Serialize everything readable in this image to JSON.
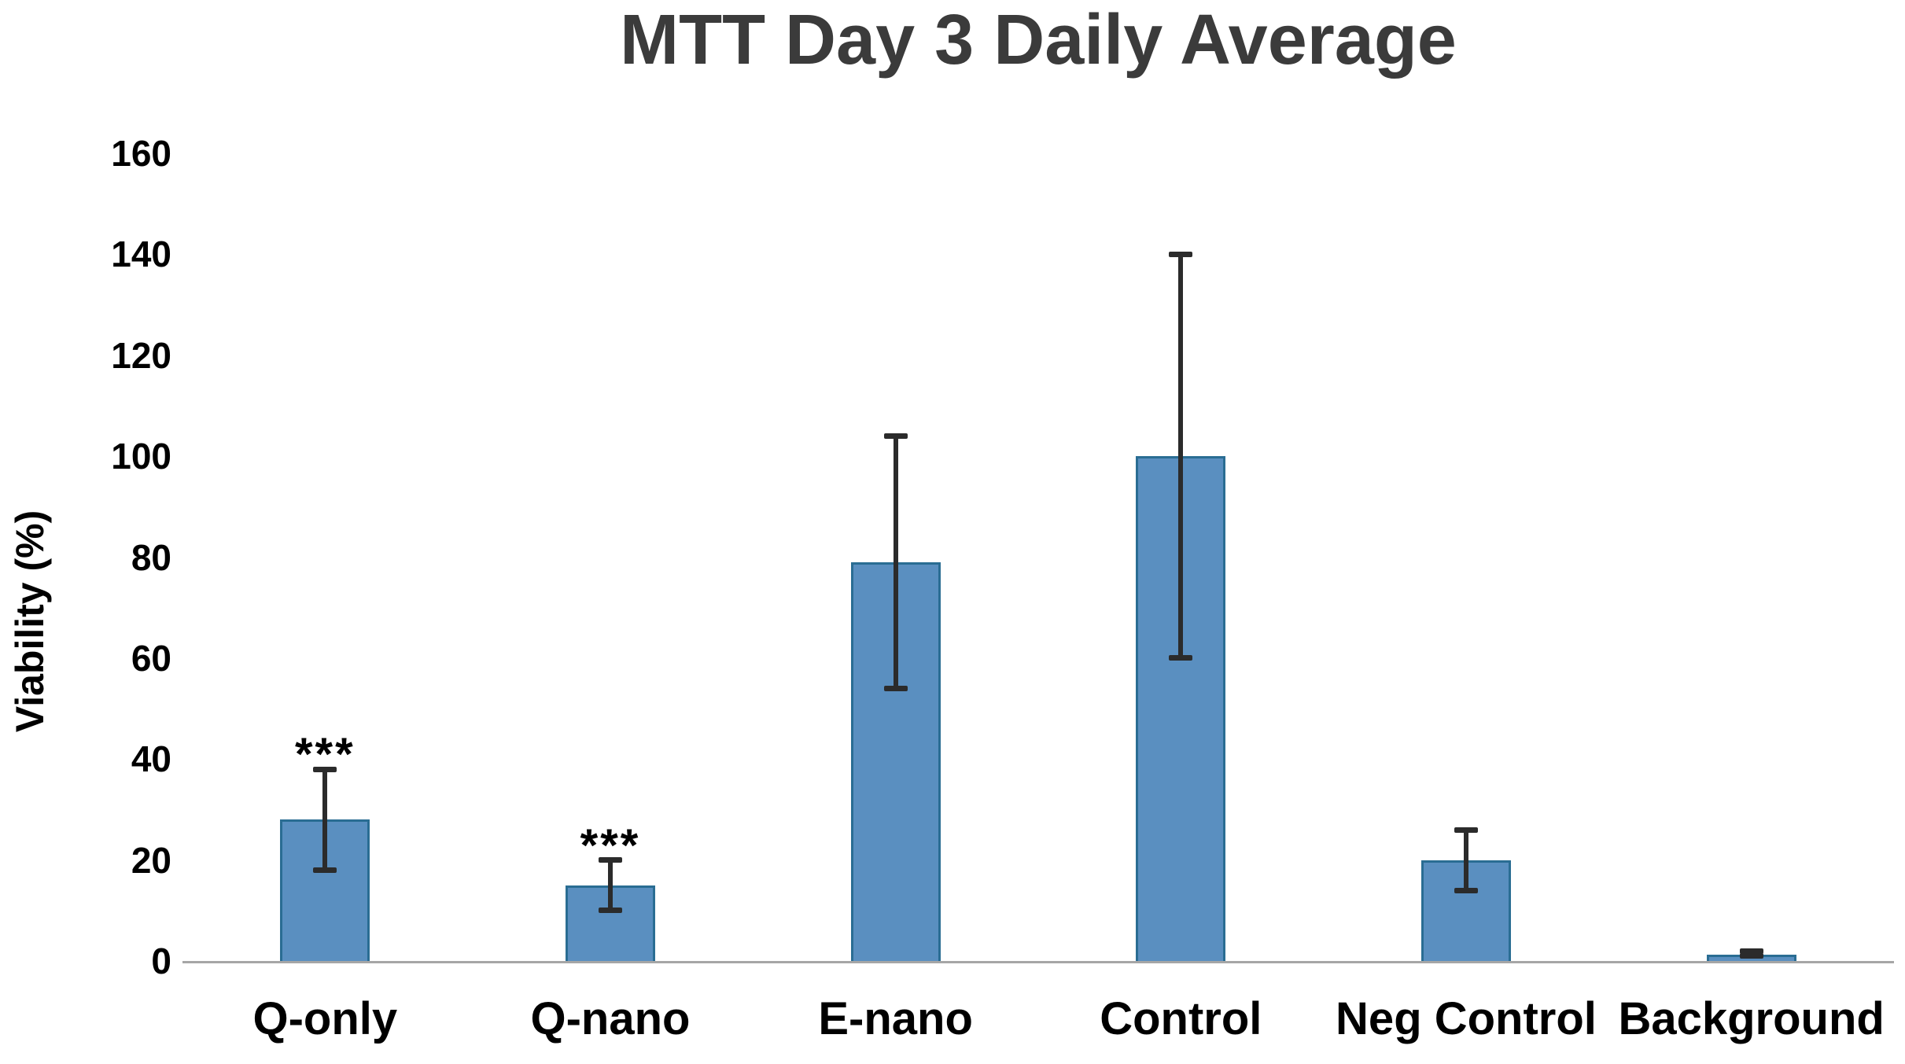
{
  "chart_data": {
    "type": "bar",
    "title": "MTT Day 3 Daily Average",
    "xlabel": "",
    "ylabel": "Viability (%)",
    "ylim": [
      0,
      160
    ],
    "yticks": [
      0,
      20,
      40,
      60,
      80,
      100,
      120,
      140,
      160
    ],
    "grid": false,
    "legend": false,
    "categories": [
      "Q-only",
      "Q-nano",
      "E-nano",
      "Control",
      "Neg Control",
      "Background"
    ],
    "values": [
      28,
      15,
      79,
      100,
      20,
      1.2
    ],
    "error_low": [
      18,
      10,
      54,
      60,
      14,
      1
    ],
    "error_high": [
      38,
      20,
      104,
      140,
      26,
      2
    ],
    "significance": [
      "***",
      "***",
      "",
      "",
      "",
      ""
    ],
    "colors": {
      "bar_fill": "#5a8fc0",
      "bar_border": "#2a6d93",
      "error_bar": "#2b2b2b",
      "axis_line": "#a6a6a6",
      "title_text": "#3b3b3b",
      "label_text": "#000000"
    }
  }
}
